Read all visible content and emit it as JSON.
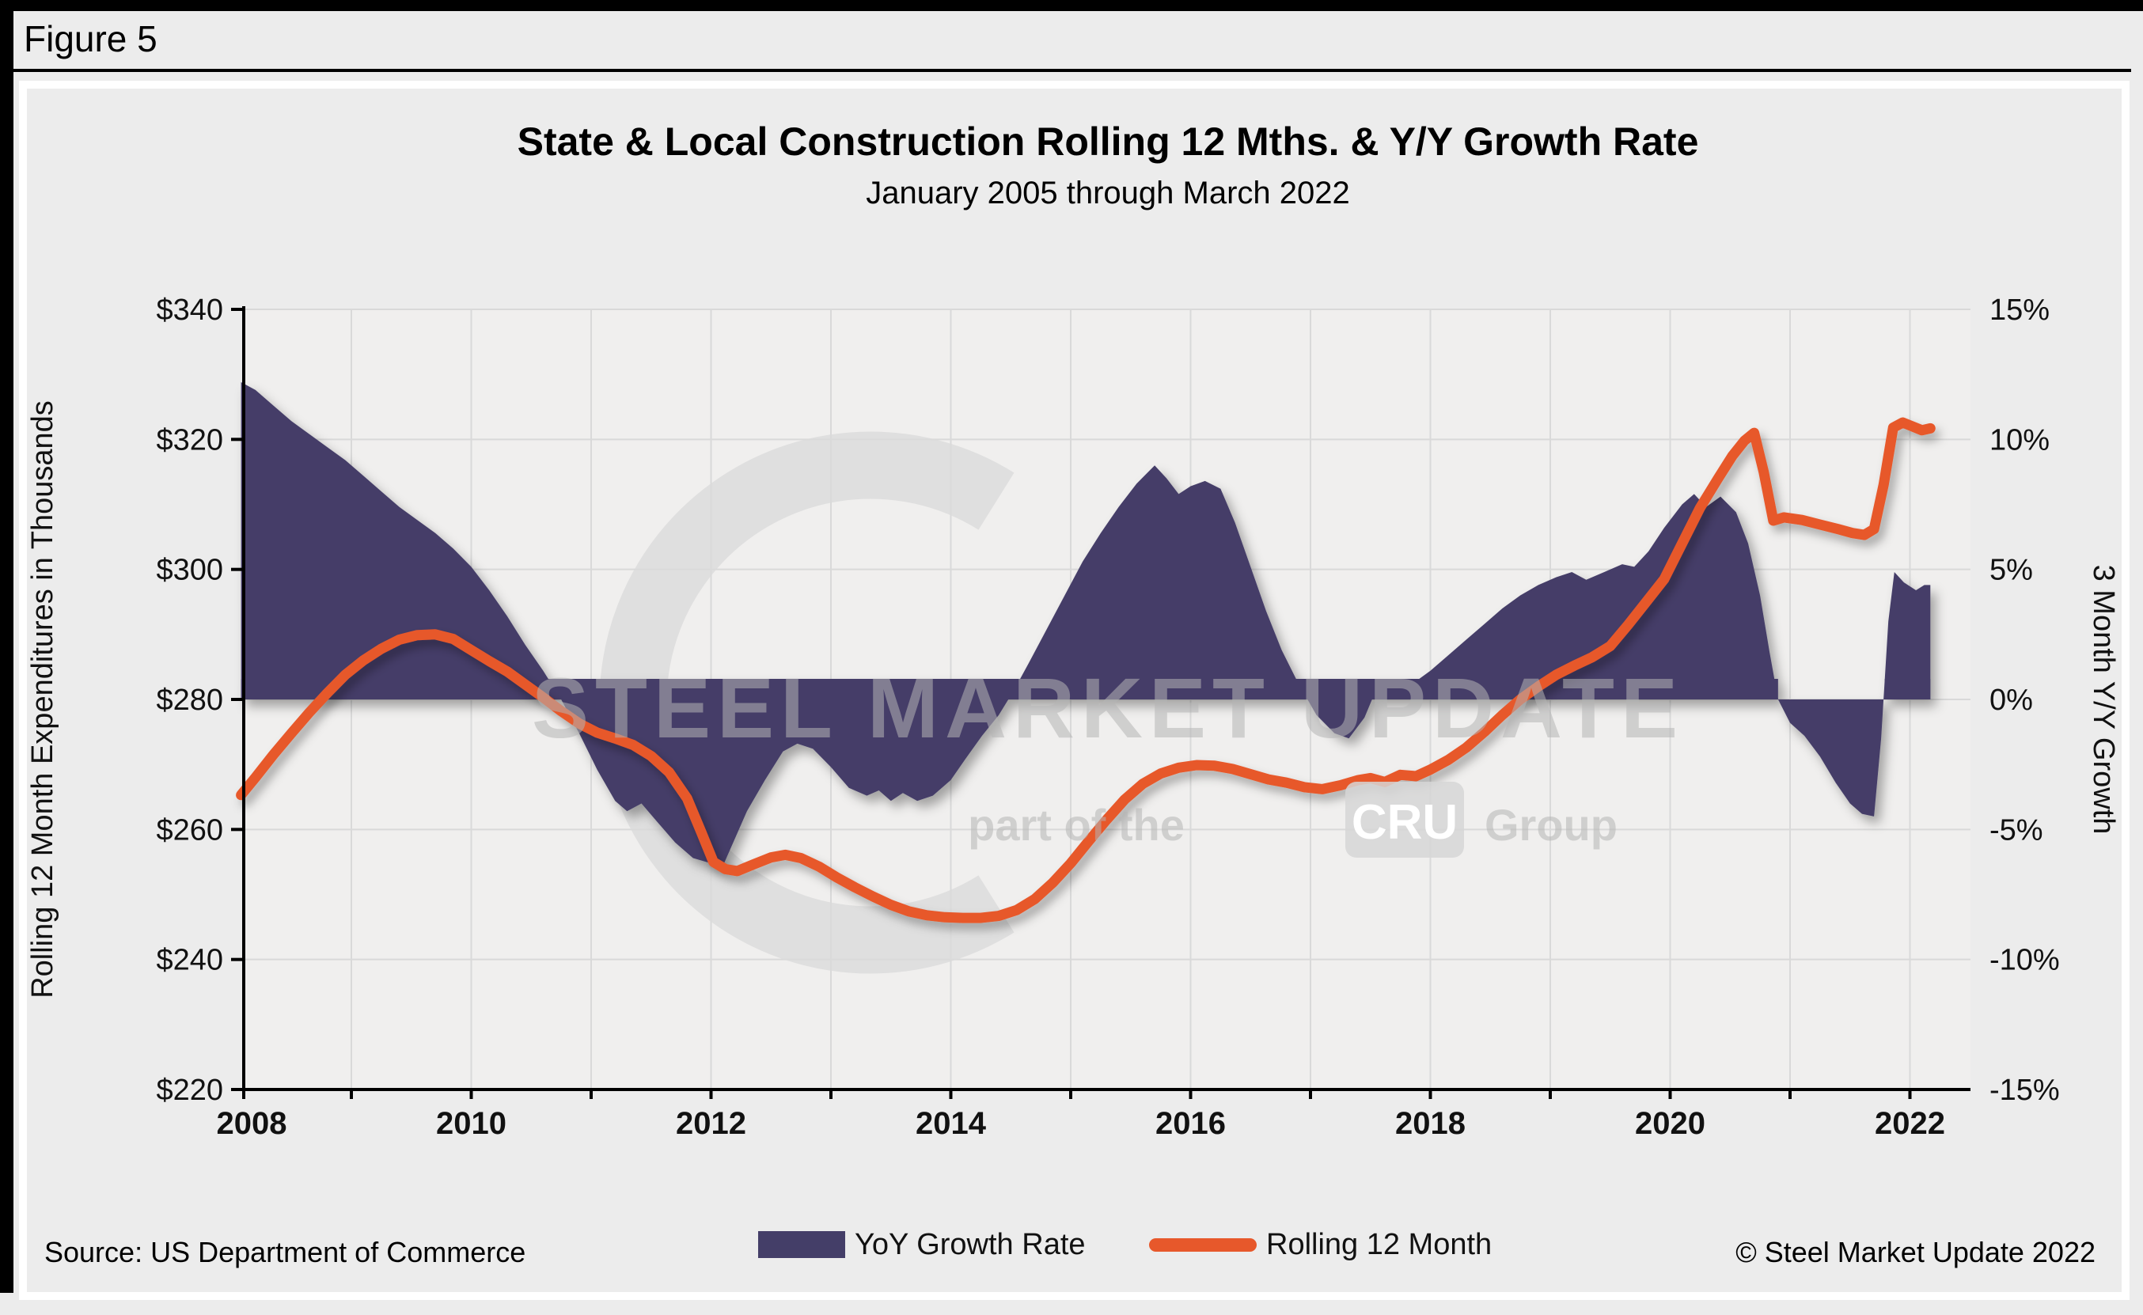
{
  "figure_label": "Figure 5",
  "chart_data": {
    "type": "combo_area_line",
    "title": "State & Local Construction Rolling 12 Mths. & Y/Y Growth Rate",
    "subtitle": "January 2005 through March 2022",
    "colors": {
      "area": "#443e68",
      "line": "#e7582b",
      "grid": "#d9d9d9",
      "plot_bg": "#f0efee",
      "page_bg": "#ececec",
      "axis": "#000000",
      "watermark": "#d9d9d9"
    },
    "left_axis": {
      "title": "Rolling 12 Month Expenditures in Thousands",
      "lim": [
        220,
        340
      ],
      "ticks": [
        {
          "value": 220,
          "label": "$220"
        },
        {
          "value": 240,
          "label": "$240"
        },
        {
          "value": 260,
          "label": "$260"
        },
        {
          "value": 280,
          "label": "$280"
        },
        {
          "value": 300,
          "label": "$300"
        },
        {
          "value": 320,
          "label": "$320"
        },
        {
          "value": 340,
          "label": "$340"
        }
      ]
    },
    "right_axis": {
      "title": "3 Month Y/Y Growth",
      "lim": [
        -15,
        15
      ],
      "ticks": [
        {
          "value": -15,
          "label": "-15%"
        },
        {
          "value": -10,
          "label": "-10%"
        },
        {
          "value": -5,
          "label": "-5%"
        },
        {
          "value": 0,
          "label": "0%"
        },
        {
          "value": 5,
          "label": "5%"
        },
        {
          "value": 10,
          "label": "10%"
        },
        {
          "value": 15,
          "label": "15%"
        }
      ]
    },
    "x_axis": {
      "lim": [
        2008.0,
        2022.5
      ],
      "gridline_years": [
        2009,
        2010,
        2011,
        2012,
        2013,
        2014,
        2015,
        2016,
        2017,
        2018,
        2019,
        2020,
        2021,
        2022
      ],
      "tick_labels": [
        {
          "value": 2008,
          "label": "2008"
        },
        {
          "value": 2010,
          "label": "2010"
        },
        {
          "value": 2012,
          "label": "2012"
        },
        {
          "value": 2014,
          "label": "2014"
        },
        {
          "value": 2016,
          "label": "2016"
        },
        {
          "value": 2018,
          "label": "2018"
        },
        {
          "value": 2020,
          "label": "2020"
        },
        {
          "value": 2022,
          "label": "2022"
        }
      ]
    },
    "series": [
      {
        "name": "YoY Growth Rate",
        "type": "area",
        "axis": "right",
        "color": "#443e68",
        "points": [
          [
            2008.08,
            12.2
          ],
          [
            2008.2,
            11.9
          ],
          [
            2008.35,
            11.3
          ],
          [
            2008.5,
            10.7
          ],
          [
            2008.65,
            10.2
          ],
          [
            2008.8,
            9.7
          ],
          [
            2008.95,
            9.2
          ],
          [
            2009.1,
            8.6
          ],
          [
            2009.25,
            8.0
          ],
          [
            2009.4,
            7.4
          ],
          [
            2009.55,
            6.9
          ],
          [
            2009.7,
            6.4
          ],
          [
            2009.85,
            5.8
          ],
          [
            2010.0,
            5.1
          ],
          [
            2010.15,
            4.2
          ],
          [
            2010.3,
            3.2
          ],
          [
            2010.45,
            2.1
          ],
          [
            2010.6,
            1.1
          ],
          [
            2010.75,
            0.0
          ],
          [
            2010.9,
            -1.3
          ],
          [
            2011.05,
            -2.7
          ],
          [
            2011.2,
            -3.9
          ],
          [
            2011.3,
            -4.3
          ],
          [
            2011.42,
            -4.0
          ],
          [
            2011.55,
            -4.7
          ],
          [
            2011.7,
            -5.5
          ],
          [
            2011.85,
            -6.1
          ],
          [
            2012.0,
            -6.3
          ],
          [
            2012.1,
            -6.4
          ],
          [
            2012.3,
            -4.3
          ],
          [
            2012.45,
            -3.1
          ],
          [
            2012.6,
            -2.0
          ],
          [
            2012.72,
            -1.7
          ],
          [
            2012.85,
            -1.9
          ],
          [
            2013.0,
            -2.6
          ],
          [
            2013.15,
            -3.4
          ],
          [
            2013.3,
            -3.7
          ],
          [
            2013.4,
            -3.5
          ],
          [
            2013.5,
            -3.9
          ],
          [
            2013.6,
            -3.6
          ],
          [
            2013.72,
            -3.9
          ],
          [
            2013.85,
            -3.7
          ],
          [
            2014.0,
            -3.1
          ],
          [
            2014.12,
            -2.3
          ],
          [
            2014.26,
            -1.4
          ],
          [
            2014.4,
            -0.6
          ],
          [
            2014.52,
            0.3
          ],
          [
            2014.65,
            1.4
          ],
          [
            2014.8,
            2.7
          ],
          [
            2014.95,
            4.0
          ],
          [
            2015.1,
            5.3
          ],
          [
            2015.25,
            6.4
          ],
          [
            2015.4,
            7.4
          ],
          [
            2015.55,
            8.3
          ],
          [
            2015.7,
            9.0
          ],
          [
            2015.8,
            8.5
          ],
          [
            2015.9,
            7.9
          ],
          [
            2016.0,
            8.2
          ],
          [
            2016.12,
            8.4
          ],
          [
            2016.25,
            8.1
          ],
          [
            2016.37,
            6.8
          ],
          [
            2016.5,
            5.1
          ],
          [
            2016.63,
            3.4
          ],
          [
            2016.76,
            1.9
          ],
          [
            2016.9,
            0.6
          ],
          [
            2017.05,
            -0.6
          ],
          [
            2017.2,
            -1.3
          ],
          [
            2017.32,
            -1.5
          ],
          [
            2017.45,
            -0.7
          ],
          [
            2017.55,
            0.4
          ],
          [
            2017.65,
            0.7
          ],
          [
            2017.75,
            0.3
          ],
          [
            2017.85,
            0.6
          ],
          [
            2018.0,
            1.1
          ],
          [
            2018.15,
            1.7
          ],
          [
            2018.3,
            2.3
          ],
          [
            2018.45,
            2.9
          ],
          [
            2018.6,
            3.5
          ],
          [
            2018.75,
            4.0
          ],
          [
            2018.9,
            4.4
          ],
          [
            2019.05,
            4.7
          ],
          [
            2019.18,
            4.9
          ],
          [
            2019.3,
            4.6
          ],
          [
            2019.45,
            4.9
          ],
          [
            2019.6,
            5.2
          ],
          [
            2019.7,
            5.1
          ],
          [
            2019.82,
            5.7
          ],
          [
            2019.95,
            6.6
          ],
          [
            2020.1,
            7.5
          ],
          [
            2020.2,
            7.9
          ],
          [
            2020.3,
            7.4
          ],
          [
            2020.42,
            7.8
          ],
          [
            2020.55,
            7.2
          ],
          [
            2020.65,
            6.0
          ],
          [
            2020.75,
            4.0
          ],
          [
            2020.83,
            1.8
          ],
          [
            2020.9,
            0.0
          ],
          [
            2021.0,
            -0.9
          ],
          [
            2021.12,
            -1.4
          ],
          [
            2021.25,
            -2.2
          ],
          [
            2021.38,
            -3.2
          ],
          [
            2021.5,
            -4.0
          ],
          [
            2021.6,
            -4.4
          ],
          [
            2021.7,
            -4.5
          ],
          [
            2021.76,
            -1.5
          ],
          [
            2021.82,
            3.0
          ],
          [
            2021.87,
            4.9
          ],
          [
            2021.95,
            4.5
          ],
          [
            2022.05,
            4.2
          ],
          [
            2022.12,
            4.4
          ],
          [
            2022.17,
            4.4
          ]
        ]
      },
      {
        "name": "Rolling 12 Month",
        "type": "line",
        "axis": "left",
        "color": "#e7582b",
        "points": [
          [
            2008.08,
            265.3
          ],
          [
            2008.2,
            268.0
          ],
          [
            2008.35,
            271.5
          ],
          [
            2008.5,
            274.8
          ],
          [
            2008.65,
            278.0
          ],
          [
            2008.8,
            281.0
          ],
          [
            2008.95,
            283.8
          ],
          [
            2009.1,
            286.0
          ],
          [
            2009.25,
            287.8
          ],
          [
            2009.4,
            289.2
          ],
          [
            2009.55,
            289.9
          ],
          [
            2009.7,
            290.0
          ],
          [
            2009.85,
            289.3
          ],
          [
            2010.0,
            287.6
          ],
          [
            2010.15,
            285.9
          ],
          [
            2010.3,
            284.3
          ],
          [
            2010.45,
            282.3
          ],
          [
            2010.6,
            280.3
          ],
          [
            2010.75,
            278.2
          ],
          [
            2010.9,
            276.3
          ],
          [
            2011.05,
            274.9
          ],
          [
            2011.2,
            274.0
          ],
          [
            2011.35,
            273.0
          ],
          [
            2011.5,
            271.3
          ],
          [
            2011.65,
            268.8
          ],
          [
            2011.8,
            264.8
          ],
          [
            2011.92,
            259.5
          ],
          [
            2012.02,
            255.0
          ],
          [
            2012.12,
            253.9
          ],
          [
            2012.22,
            253.6
          ],
          [
            2012.35,
            254.6
          ],
          [
            2012.5,
            255.7
          ],
          [
            2012.62,
            256.1
          ],
          [
            2012.75,
            255.6
          ],
          [
            2012.9,
            254.3
          ],
          [
            2013.05,
            252.6
          ],
          [
            2013.2,
            251.1
          ],
          [
            2013.35,
            249.7
          ],
          [
            2013.5,
            248.4
          ],
          [
            2013.65,
            247.4
          ],
          [
            2013.8,
            246.8
          ],
          [
            2013.95,
            246.5
          ],
          [
            2014.1,
            246.4
          ],
          [
            2014.25,
            246.4
          ],
          [
            2014.4,
            246.7
          ],
          [
            2014.55,
            247.6
          ],
          [
            2014.7,
            249.3
          ],
          [
            2014.85,
            251.8
          ],
          [
            2015.0,
            254.8
          ],
          [
            2015.15,
            258.2
          ],
          [
            2015.3,
            261.5
          ],
          [
            2015.45,
            264.6
          ],
          [
            2015.6,
            267.0
          ],
          [
            2015.75,
            268.6
          ],
          [
            2015.9,
            269.5
          ],
          [
            2016.05,
            269.9
          ],
          [
            2016.2,
            269.8
          ],
          [
            2016.35,
            269.3
          ],
          [
            2016.5,
            268.5
          ],
          [
            2016.65,
            267.7
          ],
          [
            2016.8,
            267.2
          ],
          [
            2016.95,
            266.5
          ],
          [
            2017.1,
            266.2
          ],
          [
            2017.25,
            266.8
          ],
          [
            2017.4,
            267.6
          ],
          [
            2017.5,
            267.9
          ],
          [
            2017.62,
            267.3
          ],
          [
            2017.75,
            268.4
          ],
          [
            2017.88,
            268.2
          ],
          [
            2018.0,
            269.2
          ],
          [
            2018.15,
            270.7
          ],
          [
            2018.3,
            272.6
          ],
          [
            2018.45,
            275.0
          ],
          [
            2018.6,
            277.6
          ],
          [
            2018.75,
            280.0
          ],
          [
            2018.9,
            282.0
          ],
          [
            2019.05,
            283.8
          ],
          [
            2019.2,
            285.2
          ],
          [
            2019.35,
            286.5
          ],
          [
            2019.5,
            288.2
          ],
          [
            2019.65,
            291.5
          ],
          [
            2019.8,
            295.0
          ],
          [
            2019.95,
            298.5
          ],
          [
            2020.1,
            304.0
          ],
          [
            2020.25,
            309.5
          ],
          [
            2020.4,
            314.0
          ],
          [
            2020.52,
            317.5
          ],
          [
            2020.62,
            319.8
          ],
          [
            2020.7,
            321.0
          ],
          [
            2020.78,
            315.0
          ],
          [
            2020.86,
            307.5
          ],
          [
            2020.95,
            308.0
          ],
          [
            2021.1,
            307.6
          ],
          [
            2021.25,
            306.9
          ],
          [
            2021.4,
            306.2
          ],
          [
            2021.52,
            305.6
          ],
          [
            2021.62,
            305.3
          ],
          [
            2021.7,
            306.2
          ],
          [
            2021.78,
            313.0
          ],
          [
            2021.86,
            321.8
          ],
          [
            2021.94,
            322.6
          ],
          [
            2022.02,
            322.0
          ],
          [
            2022.1,
            321.4
          ],
          [
            2022.17,
            321.7
          ]
        ]
      }
    ],
    "zero_band_segments": [
      [
        2008.08,
        2020.9
      ],
      [
        2021.79,
        2022.17
      ]
    ],
    "legend_position": "bottom"
  },
  "watermark": {
    "line1": "STEEL MARKET UPDATE",
    "line2_prefix": "part of the",
    "line2_box": "CRU",
    "line2_suffix": "Group"
  },
  "footer": {
    "source": "Source: US Department of Commerce",
    "copyright": "© Steel Market Update 2022"
  }
}
